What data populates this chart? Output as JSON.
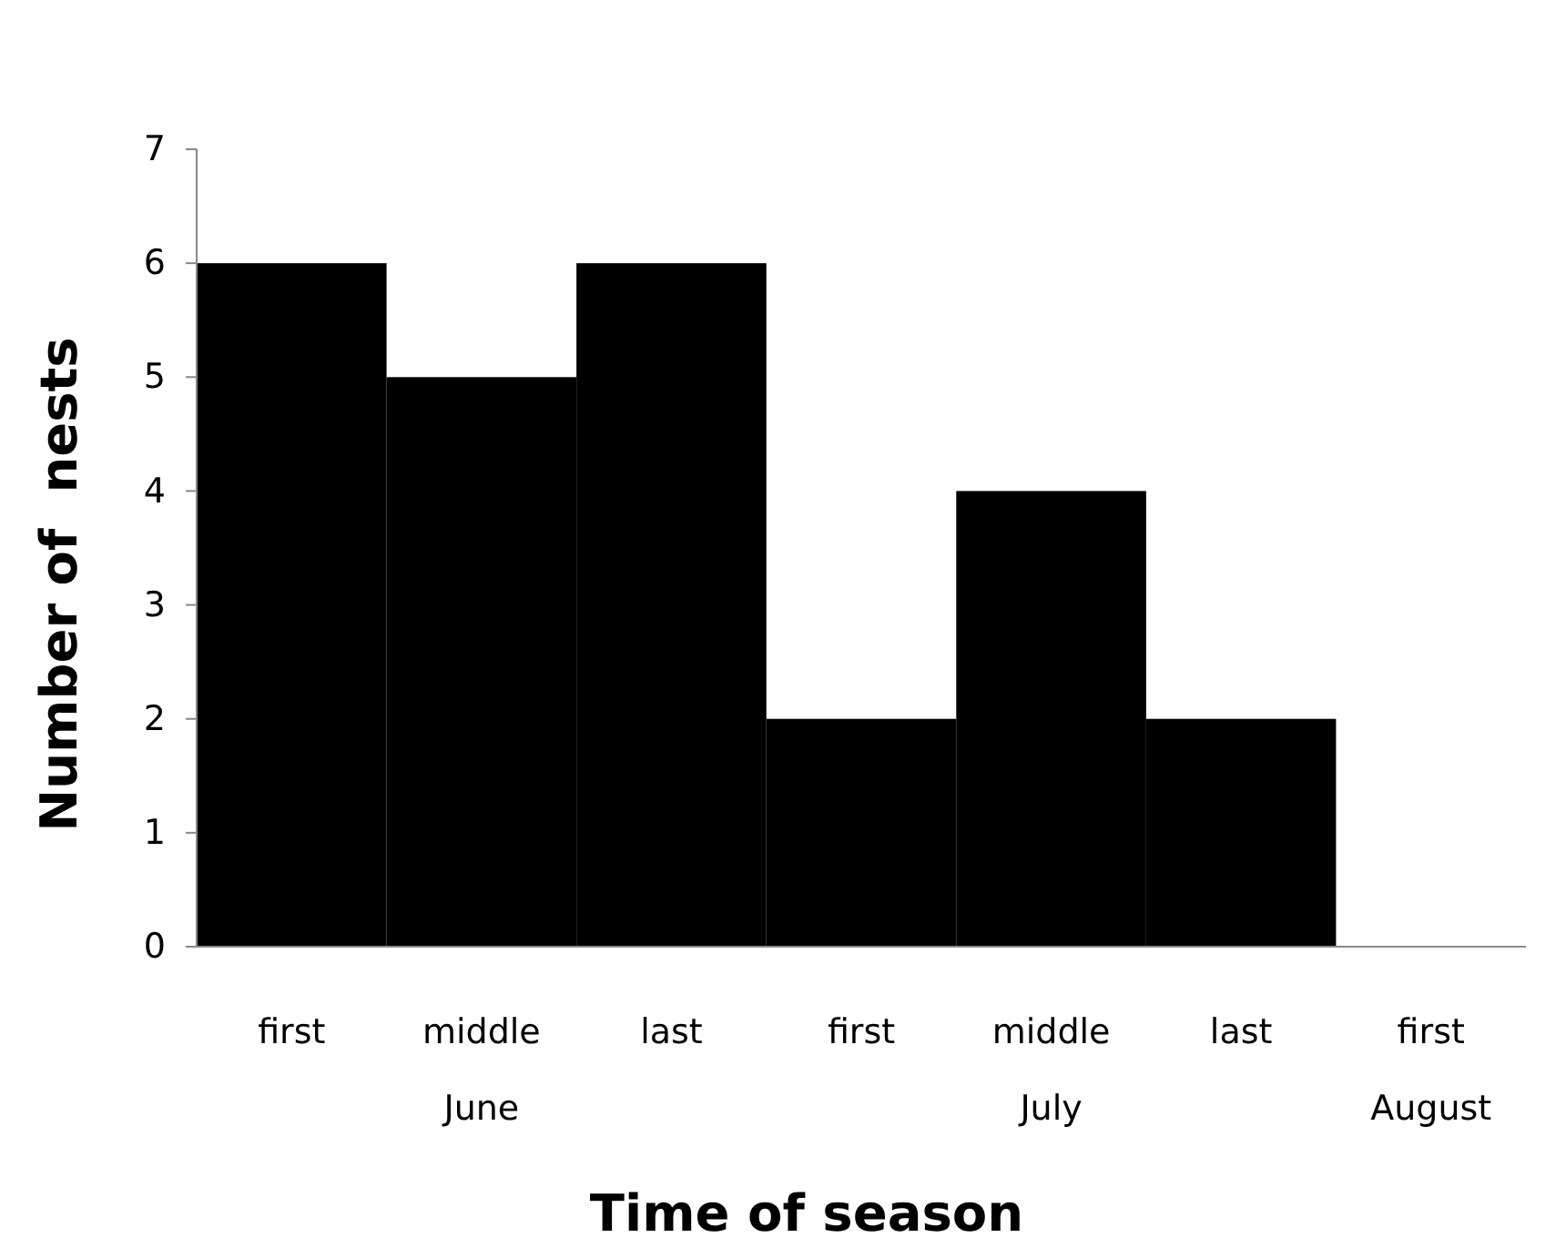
{
  "chart_data": {
    "type": "bar",
    "xlabel": "Time of season",
    "ylabel": "Number of  nests",
    "categories": [
      "first",
      "middle\nJune",
      "last",
      "first",
      "middle\nJuly",
      "last",
      "first\nAugust"
    ],
    "values": [
      6,
      5,
      6,
      2,
      4,
      2,
      0
    ],
    "color": "#000000",
    "ylim": [
      0,
      7
    ],
    "yticks": [
      0,
      1,
      2,
      3,
      4,
      5,
      6,
      7
    ],
    "grid": false
  }
}
